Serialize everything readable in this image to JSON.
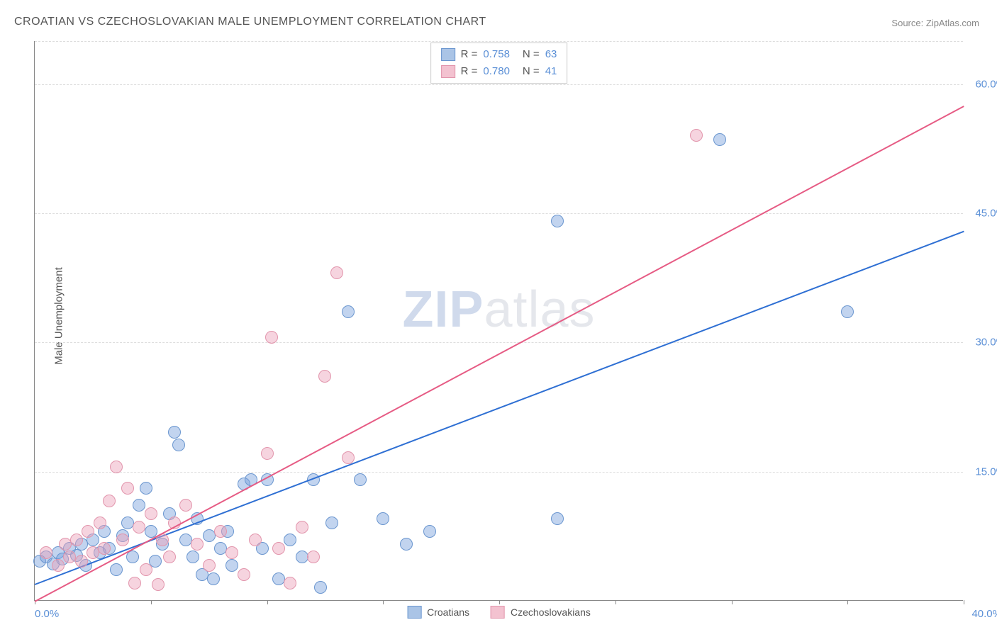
{
  "title": "CROATIAN VS CZECHOSLOVAKIAN MALE UNEMPLOYMENT CORRELATION CHART",
  "source_label": "Source:",
  "source_site": "ZipAtlas.com",
  "ylabel": "Male Unemployment",
  "watermark_a": "ZIP",
  "watermark_b": "atlas",
  "chart": {
    "type": "scatter",
    "xlim": [
      0,
      40
    ],
    "ylim": [
      0,
      65
    ],
    "x_ticks_step": 5,
    "y_ticks": [
      15,
      30,
      45,
      60
    ],
    "x_label_min": "0.0%",
    "x_label_max": "40.0%",
    "y_label_format": "%.1f%%",
    "background_color": "#ffffff",
    "grid_color": "#dddddd",
    "axis_color": "#888888",
    "tick_label_color": "#5a8fd6",
    "point_radius": 9,
    "series": [
      {
        "name": "Croatians",
        "color_fill": "rgba(120,160,220,0.45)",
        "color_stroke": "#6a96cf",
        "swatch_fill": "#aac4e6",
        "swatch_border": "#6a96cf",
        "r": "0.758",
        "n": "63",
        "trend": {
          "x1": 0,
          "y1": 2.0,
          "x2": 40,
          "y2": 43.0,
          "color": "#2e6fd3"
        },
        "points": [
          [
            0.2,
            4.5
          ],
          [
            0.5,
            5.0
          ],
          [
            0.8,
            4.2
          ],
          [
            1.0,
            5.5
          ],
          [
            1.2,
            4.8
          ],
          [
            1.5,
            6.0
          ],
          [
            1.8,
            5.2
          ],
          [
            2.0,
            6.5
          ],
          [
            2.2,
            4.0
          ],
          [
            2.5,
            7.0
          ],
          [
            2.8,
            5.5
          ],
          [
            3.0,
            8.0
          ],
          [
            3.2,
            6.0
          ],
          [
            3.5,
            3.5
          ],
          [
            3.8,
            7.5
          ],
          [
            4.0,
            9.0
          ],
          [
            4.2,
            5.0
          ],
          [
            4.5,
            11.0
          ],
          [
            4.8,
            13.0
          ],
          [
            5.0,
            8.0
          ],
          [
            5.2,
            4.5
          ],
          [
            5.5,
            6.5
          ],
          [
            5.8,
            10.0
          ],
          [
            6.0,
            19.5
          ],
          [
            6.2,
            18.0
          ],
          [
            6.5,
            7.0
          ],
          [
            6.8,
            5.0
          ],
          [
            7.0,
            9.5
          ],
          [
            7.2,
            3.0
          ],
          [
            7.5,
            7.5
          ],
          [
            7.7,
            2.5
          ],
          [
            8.0,
            6.0
          ],
          [
            8.3,
            8.0
          ],
          [
            8.5,
            4.0
          ],
          [
            9.0,
            13.5
          ],
          [
            9.3,
            14.0
          ],
          [
            9.8,
            6.0
          ],
          [
            10.0,
            14.0
          ],
          [
            10.5,
            2.5
          ],
          [
            11.0,
            7.0
          ],
          [
            11.5,
            5.0
          ],
          [
            12.0,
            14.0
          ],
          [
            12.3,
            1.5
          ],
          [
            12.8,
            9.0
          ],
          [
            13.5,
            33.5
          ],
          [
            14.0,
            14.0
          ],
          [
            15.0,
            9.5
          ],
          [
            16.0,
            6.5
          ],
          [
            17.0,
            8.0
          ],
          [
            22.5,
            9.5
          ],
          [
            22.5,
            44.0
          ],
          [
            29.5,
            53.5
          ],
          [
            35.0,
            33.5
          ]
        ]
      },
      {
        "name": "Czechoslovakians",
        "color_fill": "rgba(235,160,185,0.45)",
        "color_stroke": "#e295ac",
        "swatch_fill": "#f3c2d0",
        "swatch_border": "#e295ac",
        "r": "0.780",
        "n": "41",
        "trend": {
          "x1": 0,
          "y1": 0.0,
          "x2": 40,
          "y2": 57.5,
          "color": "#e65b84"
        },
        "points": [
          [
            0.5,
            5.5
          ],
          [
            1.0,
            4.0
          ],
          [
            1.3,
            6.5
          ],
          [
            1.5,
            5.0
          ],
          [
            1.8,
            7.0
          ],
          [
            2.0,
            4.5
          ],
          [
            2.3,
            8.0
          ],
          [
            2.5,
            5.5
          ],
          [
            2.8,
            9.0
          ],
          [
            3.0,
            6.0
          ],
          [
            3.2,
            11.5
          ],
          [
            3.5,
            15.5
          ],
          [
            3.8,
            7.0
          ],
          [
            4.0,
            13.0
          ],
          [
            4.3,
            2.0
          ],
          [
            4.5,
            8.5
          ],
          [
            4.8,
            3.5
          ],
          [
            5.0,
            10.0
          ],
          [
            5.3,
            1.8
          ],
          [
            5.5,
            7.0
          ],
          [
            5.8,
            5.0
          ],
          [
            6.0,
            9.0
          ],
          [
            6.5,
            11.0
          ],
          [
            7.0,
            6.5
          ],
          [
            7.5,
            4.0
          ],
          [
            8.0,
            8.0
          ],
          [
            8.5,
            5.5
          ],
          [
            9.0,
            3.0
          ],
          [
            9.5,
            7.0
          ],
          [
            10.0,
            17.0
          ],
          [
            10.2,
            30.5
          ],
          [
            10.5,
            6.0
          ],
          [
            11.0,
            2.0
          ],
          [
            11.5,
            8.5
          ],
          [
            12.0,
            5.0
          ],
          [
            12.5,
            26.0
          ],
          [
            13.0,
            38.0
          ],
          [
            13.5,
            16.5
          ],
          [
            28.5,
            54.0
          ]
        ]
      }
    ]
  },
  "stats_labels": {
    "r": "R",
    "n": "N",
    "eq": "="
  }
}
